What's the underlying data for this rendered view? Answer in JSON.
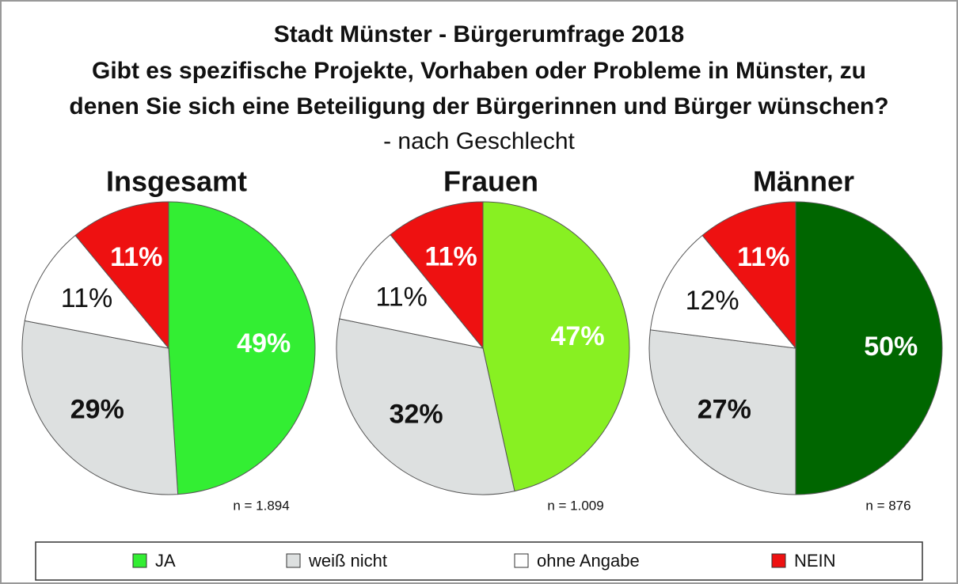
{
  "title": [
    "Stadt Münster - Bürgerumfrage 2018",
    "Gibt es spezifische Projekte, Vorhaben oder Probleme in Münster, zu",
    "denen Sie sich eine Beteiligung der Bürgerinnen und Bürger wünschen?"
  ],
  "subtitle": "- nach Geschlecht",
  "legend": {
    "labels": [
      "JA",
      "weiß nicht",
      "ohne Angabe",
      "NEIN"
    ],
    "colors": [
      "#33ee33",
      "#dde0e0",
      "#ffffff",
      "#ee1111"
    ]
  },
  "chart_data": [
    {
      "type": "pie",
      "title": "Insgesamt",
      "note": "n = 1.894",
      "values": [
        49,
        29,
        11,
        11
      ],
      "value_labels": [
        "49%",
        "29%",
        "11%",
        "11%"
      ],
      "colors": [
        "#33ee33",
        "#dde0e0",
        "#ffffff",
        "#ee1111"
      ]
    },
    {
      "type": "pie",
      "title": "Frauen",
      "note": "n = 1.009",
      "values": [
        47,
        32,
        11,
        11
      ],
      "value_labels": [
        "47%",
        "32%",
        "11%",
        "11%"
      ],
      "colors": [
        "#88f022",
        "#dde0e0",
        "#ffffff",
        "#ee1111"
      ]
    },
    {
      "type": "pie",
      "title": "Männer",
      "note": "n = 876",
      "values": [
        50,
        27,
        12,
        11
      ],
      "value_labels": [
        "50%",
        "27%",
        "12%",
        "11%"
      ],
      "colors": [
        "#006600",
        "#dde0e0",
        "#ffffff",
        "#ee1111"
      ]
    }
  ]
}
